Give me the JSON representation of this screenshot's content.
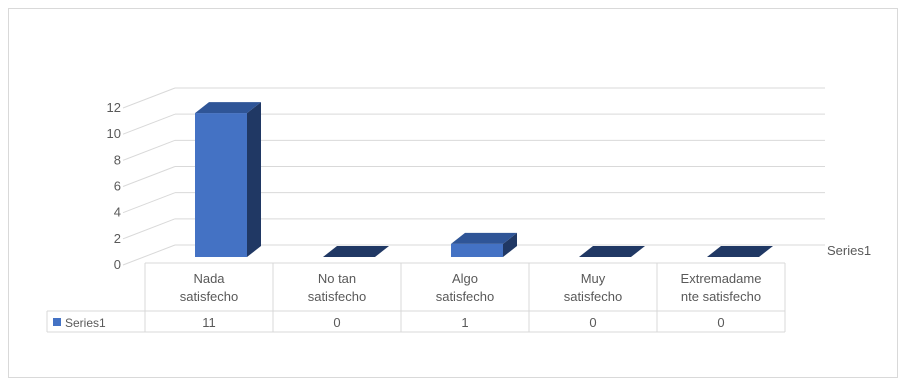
{
  "chart_data": {
    "type": "bar",
    "title": "",
    "xlabel": "",
    "ylabel": "",
    "categories": [
      [
        "Nada",
        "satisfecho"
      ],
      [
        "No tan",
        "satisfecho"
      ],
      [
        "Algo",
        "satisfecho"
      ],
      [
        "Muy",
        "satisfecho"
      ],
      [
        "Extremadame",
        "nte satisfecho"
      ]
    ],
    "series": [
      {
        "name": "Series1",
        "values": [
          11,
          0,
          1,
          0,
          0
        ]
      }
    ],
    "ylim": [
      0,
      12
    ],
    "yticks": [
      "0",
      "2",
      "4",
      "6",
      "8",
      "10",
      "12"
    ],
    "depth_axis_label": "Series1",
    "data_table": true,
    "grid": true,
    "style": "3d-column",
    "colors": {
      "bar_front": "#4472c4",
      "bar_top": "#2f5597",
      "bar_side": "#203864",
      "grid": "#d9d9d9",
      "text": "#595959"
    }
  }
}
